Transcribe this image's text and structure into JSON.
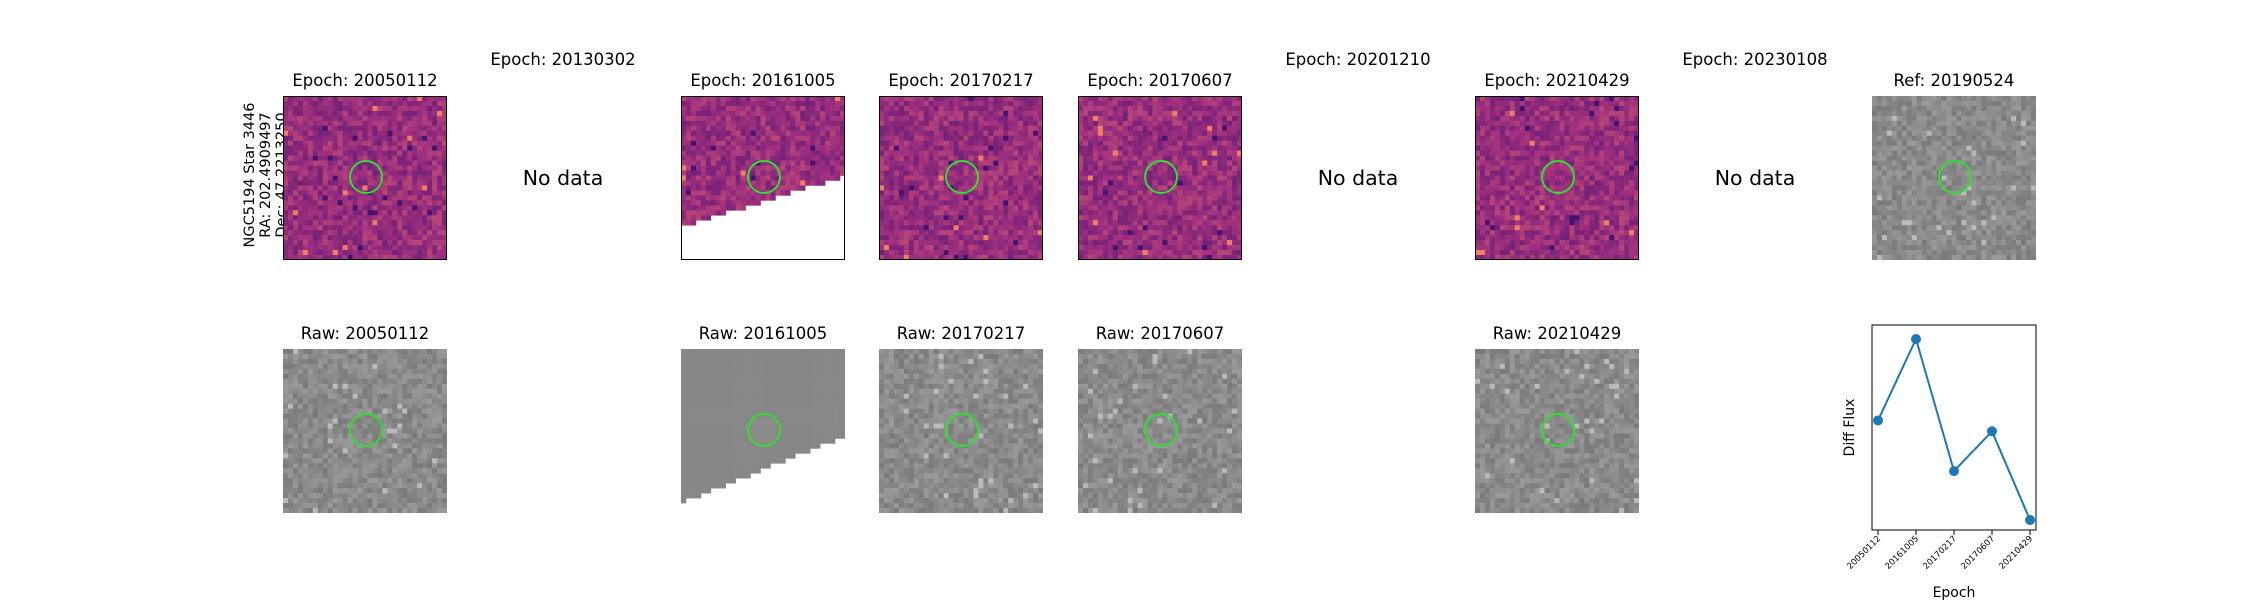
{
  "star": {
    "lines": [
      "NGC5194 Star 3446",
      "RA: 202.4909497",
      "Dec: 47.2213250"
    ]
  },
  "no_data_label": "No data",
  "top_row": [
    {
      "title": "Epoch: 20050112",
      "status": "data",
      "seed": 11,
      "cutoff": null
    },
    {
      "title": "Epoch: 20130302",
      "status": "nodata"
    },
    {
      "title": "Epoch: 20161005",
      "status": "data",
      "seed": 23,
      "cutoff": [
        0.78,
        0.47
      ]
    },
    {
      "title": "Epoch: 20170217",
      "status": "data",
      "seed": 37,
      "cutoff": null
    },
    {
      "title": "Epoch: 20170607",
      "status": "data",
      "seed": 41,
      "cutoff": null
    },
    {
      "title": "Epoch: 20201210",
      "status": "nodata"
    },
    {
      "title": "Epoch: 20210429",
      "status": "data",
      "seed": 53,
      "cutoff": null
    },
    {
      "title": "Epoch: 20230108",
      "status": "nodata"
    },
    {
      "title": "Ref: 20190524",
      "status": "ref",
      "seed": 67,
      "cutoff": null
    }
  ],
  "bottom_row": [
    {
      "title": "Raw: 20050112",
      "status": "data",
      "seed": 71,
      "cutoff": null
    },
    null,
    {
      "title": "Raw: 20161005",
      "status": "data",
      "seed": 73,
      "cutoff": [
        0.92,
        0.51
      ],
      "flat": true
    },
    {
      "title": "Raw: 20170217",
      "status": "data",
      "seed": 79,
      "cutoff": null
    },
    {
      "title": "Raw: 20170607",
      "status": "data",
      "seed": 83,
      "cutoff": null
    },
    null,
    {
      "title": "Raw: 20210429",
      "status": "data",
      "seed": 89,
      "cutoff": null
    },
    null,
    null
  ],
  "colors": {
    "diff_low": "#3b0f70",
    "diff_mid": "#a1307e",
    "diff_high": "#fb8861",
    "raw_gray": "#8a8a8a",
    "circle": "#33dd33",
    "line": "#1f77b4"
  },
  "chart_data": {
    "type": "line",
    "xlabel": "Epoch",
    "ylabel": "Diff Flux",
    "categories": [
      "20050112",
      "20161005",
      "20170217",
      "20170607",
      "20210429"
    ],
    "values": [
      0.55,
      1.0,
      0.27,
      0.49,
      0.0
    ],
    "y_ticks_shown": false
  }
}
